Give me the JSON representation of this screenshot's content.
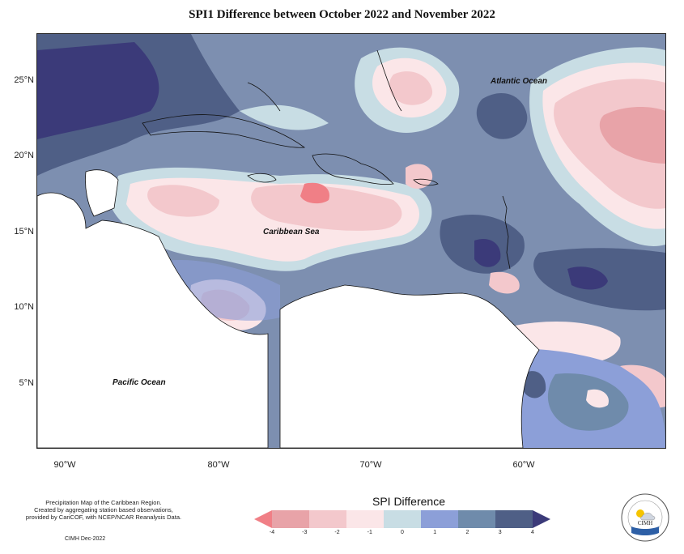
{
  "title": "SPI1 Difference between October 2022 and November 2022",
  "latitude_labels": [
    "25°N",
    "20°N",
    "15°N",
    "10°N",
    "5°N"
  ],
  "longitude_labels": [
    "90°W",
    "80°W",
    "70°W",
    "60°W"
  ],
  "region_labels": {
    "atlantic": "Atlantic Ocean",
    "caribbean": "Caribbean Sea",
    "pacific": "Pacific Ocean"
  },
  "footer": {
    "line1": "Precipitation Map of the Caribbean Region.",
    "line2": "Created by aggregating station based observations,",
    "line3": "provided by CariCOF, with NCEP/NCAR Reanalysis Data.",
    "credit": "CIMH Dec-2022"
  },
  "legend": {
    "title": "SPI Difference",
    "ticks": [
      "-4",
      "-3",
      "-2",
      "-1",
      "0",
      "1",
      "2",
      "3",
      "4"
    ],
    "colors": [
      "#f07f86",
      "#e8a3a8",
      "#f3c8cc",
      "#fbe6e8",
      "#c8dde4",
      "#8c9fd8",
      "#6f8bab",
      "#4f5f86",
      "#3b3a79"
    ]
  },
  "logo": {
    "text": "CIMH"
  }
}
